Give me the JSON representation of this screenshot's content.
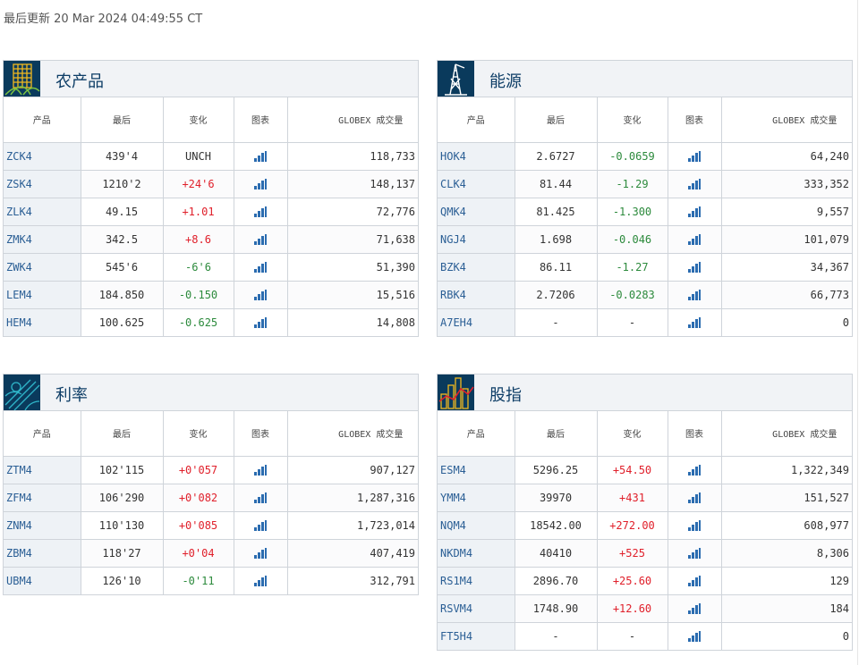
{
  "last_updated": "最后更新 20 Mar 2024 04:49:55 CT",
  "colors": {
    "positive": "#e0202b",
    "negative": "#2c8a3c",
    "symbol": "#2b5f95",
    "title": "#0d3d66",
    "icon_bg": "#0a3a5c",
    "icon_accent": "#f2b91e"
  },
  "columns": {
    "product": "产品",
    "last": "最后",
    "change": "变化",
    "chart": "图表",
    "volume": "GLOBEX 成交量"
  },
  "panels": [
    {
      "title": "农产品",
      "icon": "wheat-grid-icon",
      "rows": [
        {
          "symbol": "ZCK4",
          "last": "439'4",
          "change": "UNCH",
          "dir": "flat",
          "volume": "118,733"
        },
        {
          "symbol": "ZSK4",
          "last": "1210'2",
          "change": "+24'6",
          "dir": "pos",
          "volume": "148,137"
        },
        {
          "symbol": "ZLK4",
          "last": "49.15",
          "change": "+1.01",
          "dir": "pos",
          "volume": "72,776"
        },
        {
          "symbol": "ZMK4",
          "last": "342.5",
          "change": "+8.6",
          "dir": "pos",
          "volume": "71,638"
        },
        {
          "symbol": "ZWK4",
          "last": "545'6",
          "change": "-6'6",
          "dir": "neg",
          "volume": "51,390"
        },
        {
          "symbol": "LEM4",
          "last": "184.850",
          "change": "-0.150",
          "dir": "neg",
          "volume": "15,516"
        },
        {
          "symbol": "HEM4",
          "last": "100.625",
          "change": "-0.625",
          "dir": "neg",
          "volume": "14,808"
        }
      ]
    },
    {
      "title": "能源",
      "icon": "oil-rig-icon",
      "rows": [
        {
          "symbol": "HOK4",
          "last": "2.6727",
          "change": "-0.0659",
          "dir": "neg",
          "volume": "64,240"
        },
        {
          "symbol": "CLK4",
          "last": "81.44",
          "change": "-1.29",
          "dir": "neg",
          "volume": "333,352"
        },
        {
          "symbol": "QMK4",
          "last": "81.425",
          "change": "-1.300",
          "dir": "neg",
          "volume": "9,557"
        },
        {
          "symbol": "NGJ4",
          "last": "1.698",
          "change": "-0.046",
          "dir": "neg",
          "volume": "101,079"
        },
        {
          "symbol": "BZK4",
          "last": "86.11",
          "change": "-1.27",
          "dir": "neg",
          "volume": "34,367"
        },
        {
          "symbol": "RBK4",
          "last": "2.7206",
          "change": "-0.0283",
          "dir": "neg",
          "volume": "66,773"
        },
        {
          "symbol": "A7EH4",
          "last": "-",
          "change": "-",
          "dir": "flat",
          "volume": "0"
        }
      ]
    },
    {
      "title": "利率",
      "icon": "rates-lines-icon",
      "rows": [
        {
          "symbol": "ZTM4",
          "last": "102'115",
          "change": "+0'057",
          "dir": "pos",
          "volume": "907,127"
        },
        {
          "symbol": "ZFM4",
          "last": "106'290",
          "change": "+0'082",
          "dir": "pos",
          "volume": "1,287,316"
        },
        {
          "symbol": "ZNM4",
          "last": "110'130",
          "change": "+0'085",
          "dir": "pos",
          "volume": "1,723,014"
        },
        {
          "symbol": "ZBM4",
          "last": "118'27",
          "change": "+0'04",
          "dir": "pos",
          "volume": "407,419"
        },
        {
          "symbol": "UBM4",
          "last": "126'10",
          "change": "-0'11",
          "dir": "neg",
          "volume": "312,791"
        }
      ]
    },
    {
      "title": "股指",
      "icon": "equity-skyline-icon",
      "rows": [
        {
          "symbol": "ESM4",
          "last": "5296.25",
          "change": "+54.50",
          "dir": "pos",
          "volume": "1,322,349"
        },
        {
          "symbol": "YMM4",
          "last": "39970",
          "change": "+431",
          "dir": "pos",
          "volume": "151,527"
        },
        {
          "symbol": "NQM4",
          "last": "18542.00",
          "change": "+272.00",
          "dir": "pos",
          "volume": "608,977"
        },
        {
          "symbol": "NKDM4",
          "last": "40410",
          "change": "+525",
          "dir": "pos",
          "volume": "8,306"
        },
        {
          "symbol": "RS1M4",
          "last": "2896.70",
          "change": "+25.60",
          "dir": "pos",
          "volume": "129"
        },
        {
          "symbol": "RSVM4",
          "last": "1748.90",
          "change": "+12.60",
          "dir": "pos",
          "volume": "184"
        },
        {
          "symbol": "FT5H4",
          "last": "-",
          "change": "-",
          "dir": "flat",
          "volume": "0"
        }
      ]
    }
  ]
}
